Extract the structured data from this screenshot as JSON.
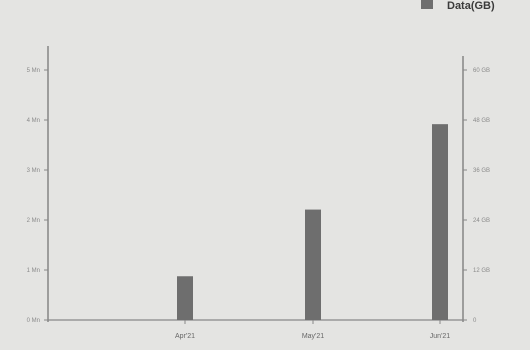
{
  "chart_data": {
    "type": "bar",
    "title": "",
    "categories": [
      "Apr'21",
      "May'21",
      "Jun'21"
    ],
    "series": [
      {
        "name": "Data(GB)",
        "values": [
          10.5,
          26.5,
          47
        ],
        "color": "#6e6e6e"
      }
    ],
    "y_left": {
      "label": "",
      "ticks": [
        "0 Mn",
        "1 Mn",
        "2 Mn",
        "3 Mn",
        "4 Mn",
        "5 Mn"
      ],
      "ylim": [
        0,
        5
      ]
    },
    "y_right": {
      "label": "",
      "ticks": [
        "0",
        "12 GB",
        "24 GB",
        "36 GB",
        "48 GB",
        "60 GB"
      ],
      "ylim": [
        0,
        60
      ]
    },
    "legend_position": "top-right",
    "grid": false
  }
}
